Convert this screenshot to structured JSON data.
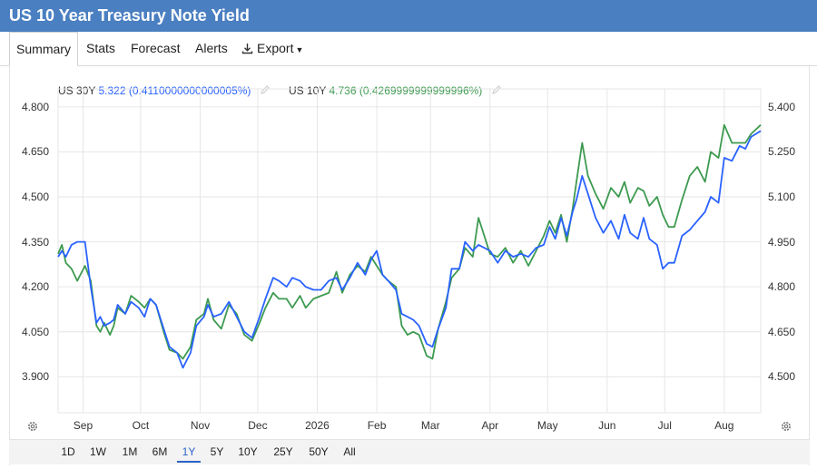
{
  "header": {
    "title": "US 10 Year Treasury Note Yield"
  },
  "tabs": [
    {
      "label": "Summary",
      "active": true
    },
    {
      "label": "Stats"
    },
    {
      "label": "Forecast"
    },
    {
      "label": "Alerts"
    },
    {
      "label": "Export",
      "icon": "download-icon",
      "dropdown": true
    }
  ],
  "legend": [
    {
      "name": "US 30Y",
      "value": "5.322 (0.4110000000000005%)",
      "color": "#2962ff",
      "icon": "pencil-icon"
    },
    {
      "name": "US 10Y",
      "value": "4.736 (0.4269999999999996%)",
      "color": "#3d9a50",
      "icon": "pencil-icon"
    }
  ],
  "ranges": [
    "1D",
    "1W",
    "1M",
    "6M",
    "1Y",
    "5Y",
    "10Y",
    "25Y",
    "50Y",
    "All"
  ],
  "active_range": "1Y",
  "colors": {
    "header": "#4a7fc1",
    "us30y": "#2962ff",
    "us10y": "#3d9a50",
    "grid": "#e6e6e6",
    "accent": "#2a62c8"
  },
  "chart_data": {
    "type": "line",
    "grid": true,
    "x_labels": [
      "Sep",
      "Oct",
      "Nov",
      "Dec",
      "2026",
      "Feb",
      "Mar",
      "Apr",
      "May",
      "Jun",
      "Jul",
      "Aug"
    ],
    "x_label_dates": [
      "2025-09-01",
      "2025-10-01",
      "2025-11-01",
      "2025-12-01",
      "2026-01-01",
      "2026-02-01",
      "2026-03-01",
      "2026-04-01",
      "2026-05-01",
      "2026-06-01",
      "2026-07-01",
      "2026-08-01"
    ],
    "x_range": [
      "2025-08-19",
      "2026-08-20"
    ],
    "left_axis": {
      "series": "US 10Y",
      "ticks": [
        "4.800",
        "4.650",
        "4.500",
        "4.350",
        "4.200",
        "4.050",
        "3.900"
      ],
      "ylim": [
        3.78,
        4.86
      ]
    },
    "right_axis": {
      "series": "US 30Y",
      "ticks": [
        "5.400",
        "5.250",
        "5.100",
        "4.950",
        "4.800",
        "4.650",
        "4.500"
      ],
      "ylim": [
        4.38,
        5.46
      ]
    },
    "series": [
      {
        "name": "US 10Y",
        "axis": "left",
        "color": "#3d9a50",
        "points": [
          [
            "2025-08-19",
            4.31
          ],
          [
            "2025-08-21",
            4.34
          ],
          [
            "2025-08-23",
            4.28
          ],
          [
            "2025-08-26",
            4.26
          ],
          [
            "2025-08-29",
            4.22
          ],
          [
            "2025-09-02",
            4.27
          ],
          [
            "2025-09-05",
            4.22
          ],
          [
            "2025-09-08",
            4.07
          ],
          [
            "2025-09-10",
            4.05
          ],
          [
            "2025-09-12",
            4.08
          ],
          [
            "2025-09-15",
            4.04
          ],
          [
            "2025-09-17",
            4.07
          ],
          [
            "2025-09-19",
            4.13
          ],
          [
            "2025-09-23",
            4.11
          ],
          [
            "2025-09-26",
            4.17
          ],
          [
            "2025-09-30",
            4.15
          ],
          [
            "2025-10-03",
            4.13
          ],
          [
            "2025-10-06",
            4.16
          ],
          [
            "2025-10-09",
            4.14
          ],
          [
            "2025-10-13",
            4.05
          ],
          [
            "2025-10-16",
            3.99
          ],
          [
            "2025-10-20",
            3.98
          ],
          [
            "2025-10-23",
            3.96
          ],
          [
            "2025-10-27",
            4.0
          ],
          [
            "2025-10-30",
            4.09
          ],
          [
            "2025-11-03",
            4.11
          ],
          [
            "2025-11-05",
            4.16
          ],
          [
            "2025-11-08",
            4.09
          ],
          [
            "2025-11-12",
            4.06
          ],
          [
            "2025-11-16",
            4.14
          ],
          [
            "2025-11-20",
            4.11
          ],
          [
            "2025-11-24",
            4.04
          ],
          [
            "2025-11-28",
            4.02
          ],
          [
            "2025-12-02",
            4.08
          ],
          [
            "2025-12-05",
            4.13
          ],
          [
            "2025-12-09",
            4.18
          ],
          [
            "2025-12-12",
            4.16
          ],
          [
            "2025-12-16",
            4.16
          ],
          [
            "2025-12-19",
            4.13
          ],
          [
            "2025-12-23",
            4.17
          ],
          [
            "2025-12-26",
            4.13
          ],
          [
            "2025-12-30",
            4.16
          ],
          [
            "2026-01-03",
            4.17
          ],
          [
            "2026-01-07",
            4.18
          ],
          [
            "2026-01-11",
            4.25
          ],
          [
            "2026-01-14",
            4.18
          ],
          [
            "2026-01-18",
            4.24
          ],
          [
            "2026-01-22",
            4.27
          ],
          [
            "2026-01-26",
            4.25
          ],
          [
            "2026-01-29",
            4.3
          ],
          [
            "2026-02-01",
            4.27
          ],
          [
            "2026-02-04",
            4.24
          ],
          [
            "2026-02-07",
            4.22
          ],
          [
            "2026-02-11",
            4.2
          ],
          [
            "2026-02-14",
            4.07
          ],
          [
            "2026-02-17",
            4.04
          ],
          [
            "2026-02-20",
            4.05
          ],
          [
            "2026-02-23",
            4.04
          ],
          [
            "2026-02-27",
            3.97
          ],
          [
            "2026-03-02",
            3.96
          ],
          [
            "2026-03-05",
            4.06
          ],
          [
            "2026-03-09",
            4.15
          ],
          [
            "2026-03-12",
            4.23
          ],
          [
            "2026-03-16",
            4.26
          ],
          [
            "2026-03-19",
            4.33
          ],
          [
            "2026-03-23",
            4.3
          ],
          [
            "2026-03-26",
            4.43
          ],
          [
            "2026-03-29",
            4.37
          ],
          [
            "2026-04-01",
            4.31
          ],
          [
            "2026-04-05",
            4.3
          ],
          [
            "2026-04-09",
            4.33
          ],
          [
            "2026-04-13",
            4.28
          ],
          [
            "2026-04-17",
            4.32
          ],
          [
            "2026-04-21",
            4.27
          ],
          [
            "2026-04-25",
            4.32
          ],
          [
            "2026-04-29",
            4.37
          ],
          [
            "2026-05-02",
            4.42
          ],
          [
            "2026-05-05",
            4.38
          ],
          [
            "2026-05-08",
            4.44
          ],
          [
            "2026-05-11",
            4.35
          ],
          [
            "2026-05-14",
            4.46
          ],
          [
            "2026-05-16",
            4.55
          ],
          [
            "2026-05-19",
            4.68
          ],
          [
            "2026-05-22",
            4.57
          ],
          [
            "2026-05-26",
            4.51
          ],
          [
            "2026-05-30",
            4.46
          ],
          [
            "2026-06-03",
            4.53
          ],
          [
            "2026-06-07",
            4.5
          ],
          [
            "2026-06-10",
            4.55
          ],
          [
            "2026-06-13",
            4.48
          ],
          [
            "2026-06-17",
            4.53
          ],
          [
            "2026-06-20",
            4.52
          ],
          [
            "2026-06-23",
            4.47
          ],
          [
            "2026-06-27",
            4.5
          ],
          [
            "2026-06-30",
            4.44
          ],
          [
            "2026-07-03",
            4.4
          ],
          [
            "2026-07-06",
            4.4
          ],
          [
            "2026-07-10",
            4.49
          ],
          [
            "2026-07-14",
            4.57
          ],
          [
            "2026-07-18",
            4.6
          ],
          [
            "2026-07-22",
            4.55
          ],
          [
            "2026-07-25",
            4.65
          ],
          [
            "2026-07-29",
            4.63
          ],
          [
            "2026-08-01",
            4.74
          ],
          [
            "2026-08-05",
            4.68
          ],
          [
            "2026-08-09",
            4.68
          ],
          [
            "2026-08-12",
            4.68
          ],
          [
            "2026-08-15",
            4.71
          ],
          [
            "2026-08-20",
            4.74
          ]
        ]
      },
      {
        "name": "US 30Y",
        "axis": "right",
        "color": "#2962ff",
        "points": [
          [
            "2025-08-19",
            4.9
          ],
          [
            "2025-08-21",
            4.92
          ],
          [
            "2025-08-23",
            4.9
          ],
          [
            "2025-08-26",
            4.94
          ],
          [
            "2025-08-29",
            4.95
          ],
          [
            "2025-09-02",
            4.95
          ],
          [
            "2025-09-05",
            4.8
          ],
          [
            "2025-09-08",
            4.68
          ],
          [
            "2025-09-10",
            4.7
          ],
          [
            "2025-09-12",
            4.67
          ],
          [
            "2025-09-15",
            4.68
          ],
          [
            "2025-09-17",
            4.69
          ],
          [
            "2025-09-19",
            4.74
          ],
          [
            "2025-09-23",
            4.71
          ],
          [
            "2025-09-26",
            4.75
          ],
          [
            "2025-09-30",
            4.73
          ],
          [
            "2025-10-03",
            4.7
          ],
          [
            "2025-10-06",
            4.76
          ],
          [
            "2025-10-09",
            4.74
          ],
          [
            "2025-10-13",
            4.66
          ],
          [
            "2025-10-16",
            4.6
          ],
          [
            "2025-10-20",
            4.58
          ],
          [
            "2025-10-23",
            4.53
          ],
          [
            "2025-10-27",
            4.58
          ],
          [
            "2025-10-30",
            4.67
          ],
          [
            "2025-11-03",
            4.7
          ],
          [
            "2025-11-05",
            4.74
          ],
          [
            "2025-11-08",
            4.7
          ],
          [
            "2025-11-12",
            4.71
          ],
          [
            "2025-11-16",
            4.75
          ],
          [
            "2025-11-20",
            4.7
          ],
          [
            "2025-11-24",
            4.65
          ],
          [
            "2025-11-28",
            4.63
          ],
          [
            "2025-12-02",
            4.7
          ],
          [
            "2025-12-05",
            4.76
          ],
          [
            "2025-12-09",
            4.83
          ],
          [
            "2025-12-12",
            4.82
          ],
          [
            "2025-12-16",
            4.8
          ],
          [
            "2025-12-19",
            4.83
          ],
          [
            "2025-12-23",
            4.82
          ],
          [
            "2025-12-26",
            4.8
          ],
          [
            "2025-12-30",
            4.79
          ],
          [
            "2026-01-03",
            4.79
          ],
          [
            "2026-01-07",
            4.82
          ],
          [
            "2026-01-11",
            4.83
          ],
          [
            "2026-01-14",
            4.79
          ],
          [
            "2026-01-18",
            4.83
          ],
          [
            "2026-01-22",
            4.88
          ],
          [
            "2026-01-26",
            4.84
          ],
          [
            "2026-01-29",
            4.89
          ],
          [
            "2026-02-01",
            4.92
          ],
          [
            "2026-02-04",
            4.84
          ],
          [
            "2026-02-07",
            4.82
          ],
          [
            "2026-02-11",
            4.79
          ],
          [
            "2026-02-14",
            4.71
          ],
          [
            "2026-02-17",
            4.7
          ],
          [
            "2026-02-20",
            4.69
          ],
          [
            "2026-02-23",
            4.67
          ],
          [
            "2026-02-27",
            4.61
          ],
          [
            "2026-03-02",
            4.6
          ],
          [
            "2026-03-05",
            4.66
          ],
          [
            "2026-03-09",
            4.73
          ],
          [
            "2026-03-12",
            4.86
          ],
          [
            "2026-03-16",
            4.86
          ],
          [
            "2026-03-19",
            4.95
          ],
          [
            "2026-03-23",
            4.92
          ],
          [
            "2026-03-26",
            4.94
          ],
          [
            "2026-03-29",
            4.93
          ],
          [
            "2026-04-01",
            4.92
          ],
          [
            "2026-04-05",
            4.88
          ],
          [
            "2026-04-09",
            4.92
          ],
          [
            "2026-04-13",
            4.9
          ],
          [
            "2026-04-17",
            4.91
          ],
          [
            "2026-04-21",
            4.9
          ],
          [
            "2026-04-25",
            4.93
          ],
          [
            "2026-04-29",
            4.94
          ],
          [
            "2026-05-02",
            5.0
          ],
          [
            "2026-05-05",
            4.96
          ],
          [
            "2026-05-08",
            5.03
          ],
          [
            "2026-05-11",
            4.97
          ],
          [
            "2026-05-14",
            5.05
          ],
          [
            "2026-05-16",
            5.09
          ],
          [
            "2026-05-19",
            5.17
          ],
          [
            "2026-05-22",
            5.11
          ],
          [
            "2026-05-26",
            5.03
          ],
          [
            "2026-05-30",
            4.98
          ],
          [
            "2026-06-03",
            5.02
          ],
          [
            "2026-06-07",
            4.96
          ],
          [
            "2026-06-10",
            5.04
          ],
          [
            "2026-06-13",
            4.98
          ],
          [
            "2026-06-17",
            4.96
          ],
          [
            "2026-06-20",
            5.03
          ],
          [
            "2026-06-23",
            4.96
          ],
          [
            "2026-06-27",
            4.94
          ],
          [
            "2026-06-30",
            4.86
          ],
          [
            "2026-07-03",
            4.88
          ],
          [
            "2026-07-06",
            4.88
          ],
          [
            "2026-07-10",
            4.97
          ],
          [
            "2026-07-14",
            4.99
          ],
          [
            "2026-07-18",
            5.02
          ],
          [
            "2026-07-22",
            5.05
          ],
          [
            "2026-07-25",
            5.1
          ],
          [
            "2026-07-29",
            5.08
          ],
          [
            "2026-08-01",
            5.23
          ],
          [
            "2026-08-05",
            5.22
          ],
          [
            "2026-08-09",
            5.27
          ],
          [
            "2026-08-12",
            5.26
          ],
          [
            "2026-08-15",
            5.3
          ],
          [
            "2026-08-20",
            5.32
          ]
        ]
      }
    ]
  }
}
